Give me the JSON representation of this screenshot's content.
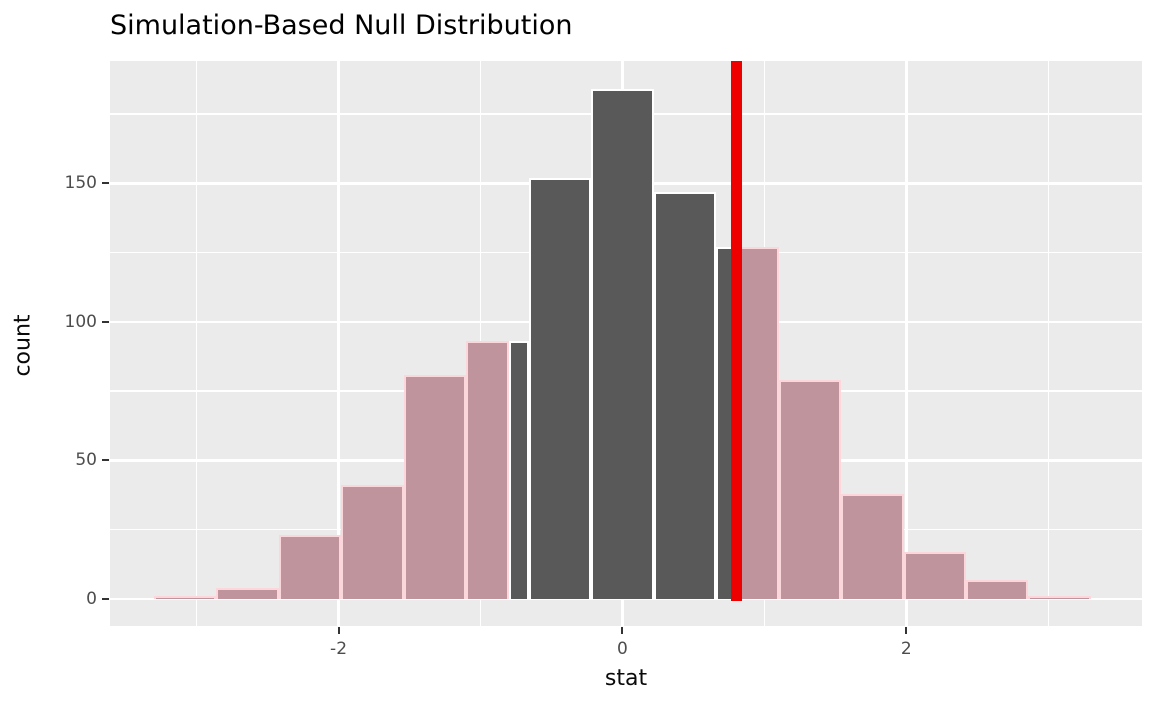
{
  "title": "Simulation-Based Null Distribution",
  "axes": {
    "x_title": "stat",
    "y_title": "count"
  },
  "chart_data": {
    "type": "bar",
    "subtype": "histogram",
    "title": "Simulation-Based Null Distribution",
    "xlabel": "stat",
    "ylabel": "count",
    "legend": "none",
    "grid": "on",
    "panel_background": "#EBEBEB",
    "xlim": [
      -3.61,
      3.66
    ],
    "ylim": [
      -9.7,
      194.1
    ],
    "x_ticks": [
      {
        "value": -2,
        "label": "-2"
      },
      {
        "value": 0,
        "label": "0"
      },
      {
        "value": 2,
        "label": "2"
      }
    ],
    "x_minor_ticks": [
      -3,
      -1,
      1,
      3
    ],
    "y_ticks": [
      {
        "value": 0,
        "label": "0"
      },
      {
        "value": 50,
        "label": "50"
      },
      {
        "value": 100,
        "label": "100"
      },
      {
        "value": 150,
        "label": "150"
      }
    ],
    "y_minor_ticks": [
      25,
      75,
      125,
      175
    ],
    "bin_edges": [
      -3.3,
      -2.86,
      -2.42,
      -1.98,
      -1.54,
      -1.1,
      -0.66,
      -0.22,
      0.22,
      0.66,
      1.1,
      1.54,
      1.98,
      2.42,
      2.86,
      3.3
    ],
    "bin_centers": [
      -3.08,
      -2.64,
      -2.2,
      -1.76,
      -1.32,
      -0.88,
      -0.44,
      0.0,
      0.44,
      0.88,
      1.32,
      1.76,
      2.2,
      2.64,
      3.08
    ],
    "counts": [
      1,
      4,
      23,
      41,
      81,
      93,
      152,
      184,
      147,
      127,
      79,
      38,
      17,
      7,
      1
    ],
    "observed_stat": 0.8,
    "shade_direction": "two-sided",
    "shade_boundaries": [
      -0.8,
      0.8
    ],
    "colors": {
      "bar_fill": "#595959",
      "bar_outline": "#FFFFFF",
      "shaded_bar_fill": "#BF949D",
      "shaded_bar_outline": "#FBD7DC",
      "observed_line": "#EE0000",
      "gridline": "#FFFFFF",
      "tick_text": "#4D4D4D",
      "axis_title_text": "#0a0a0a",
      "title_text": "#000000"
    }
  }
}
